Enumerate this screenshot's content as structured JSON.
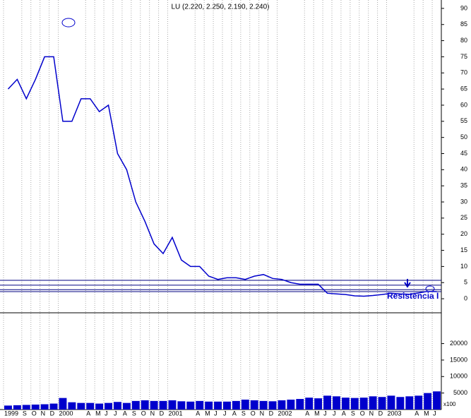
{
  "chart_data": {
    "type": "line",
    "title": "LU (2.220, 2.250, 2.190, 2.240)",
    "categories": [
      "1999",
      null,
      "S",
      "O",
      "N",
      "D",
      "2000",
      null,
      null,
      "A",
      "M",
      "J",
      "J",
      "A",
      "S",
      "O",
      "N",
      "D",
      "2001",
      null,
      null,
      "A",
      "M",
      "J",
      "J",
      "A",
      "S",
      "O",
      "N",
      "D",
      "2002",
      null,
      null,
      "A",
      "M",
      "J",
      "J",
      "A",
      "S",
      "O",
      "N",
      "D",
      "2003",
      null,
      null,
      "A",
      "M",
      "J"
    ],
    "series": [
      {
        "color": "#0000cc",
        "values": [
          65,
          68,
          62,
          68,
          75,
          75,
          55,
          55,
          62,
          62,
          58,
          60,
          45,
          40,
          30,
          24,
          17,
          14,
          19,
          12,
          10,
          10,
          7,
          6,
          6.5,
          6.5,
          6,
          7,
          7.5,
          6.3,
          6,
          5,
          4.5,
          4.5,
          4.5,
          1.7,
          1.5,
          1.3,
          0.9,
          0.8,
          1,
          1.3,
          1.7,
          1.5,
          1.4,
          1.8,
          2.3,
          2.2
        ]
      }
    ],
    "ylim": [
      -3.7,
      92.6
    ],
    "yticks": [
      0,
      5,
      10,
      15,
      20,
      25,
      30,
      35,
      40,
      45,
      50,
      55,
      60,
      65,
      70,
      75,
      80,
      85,
      90
    ],
    "grid": true,
    "levels": [
      5.7,
      4.2,
      2.8,
      2.2
    ],
    "annotation": "Resistencia I",
    "volume": {
      "color": "#0000cc",
      "values": [
        1200,
        1300,
        1400,
        1500,
        1600,
        1800,
        3500,
        2200,
        2000,
        2000,
        1800,
        2000,
        2300,
        2000,
        2600,
        2800,
        2600,
        2600,
        2800,
        2500,
        2400,
        2600,
        2400,
        2400,
        2400,
        2600,
        3000,
        2800,
        2600,
        2500,
        2800,
        3000,
        3200,
        3600,
        3400,
        4200,
        4000,
        3600,
        3500,
        3600,
        4000,
        3800,
        4200,
        3800,
        4000,
        4200,
        5000,
        5500
      ],
      "ylim": [
        0,
        28900
      ],
      "yticks": [
        5000,
        10000,
        15000,
        20000
      ],
      "axis_label": "x100"
    }
  }
}
